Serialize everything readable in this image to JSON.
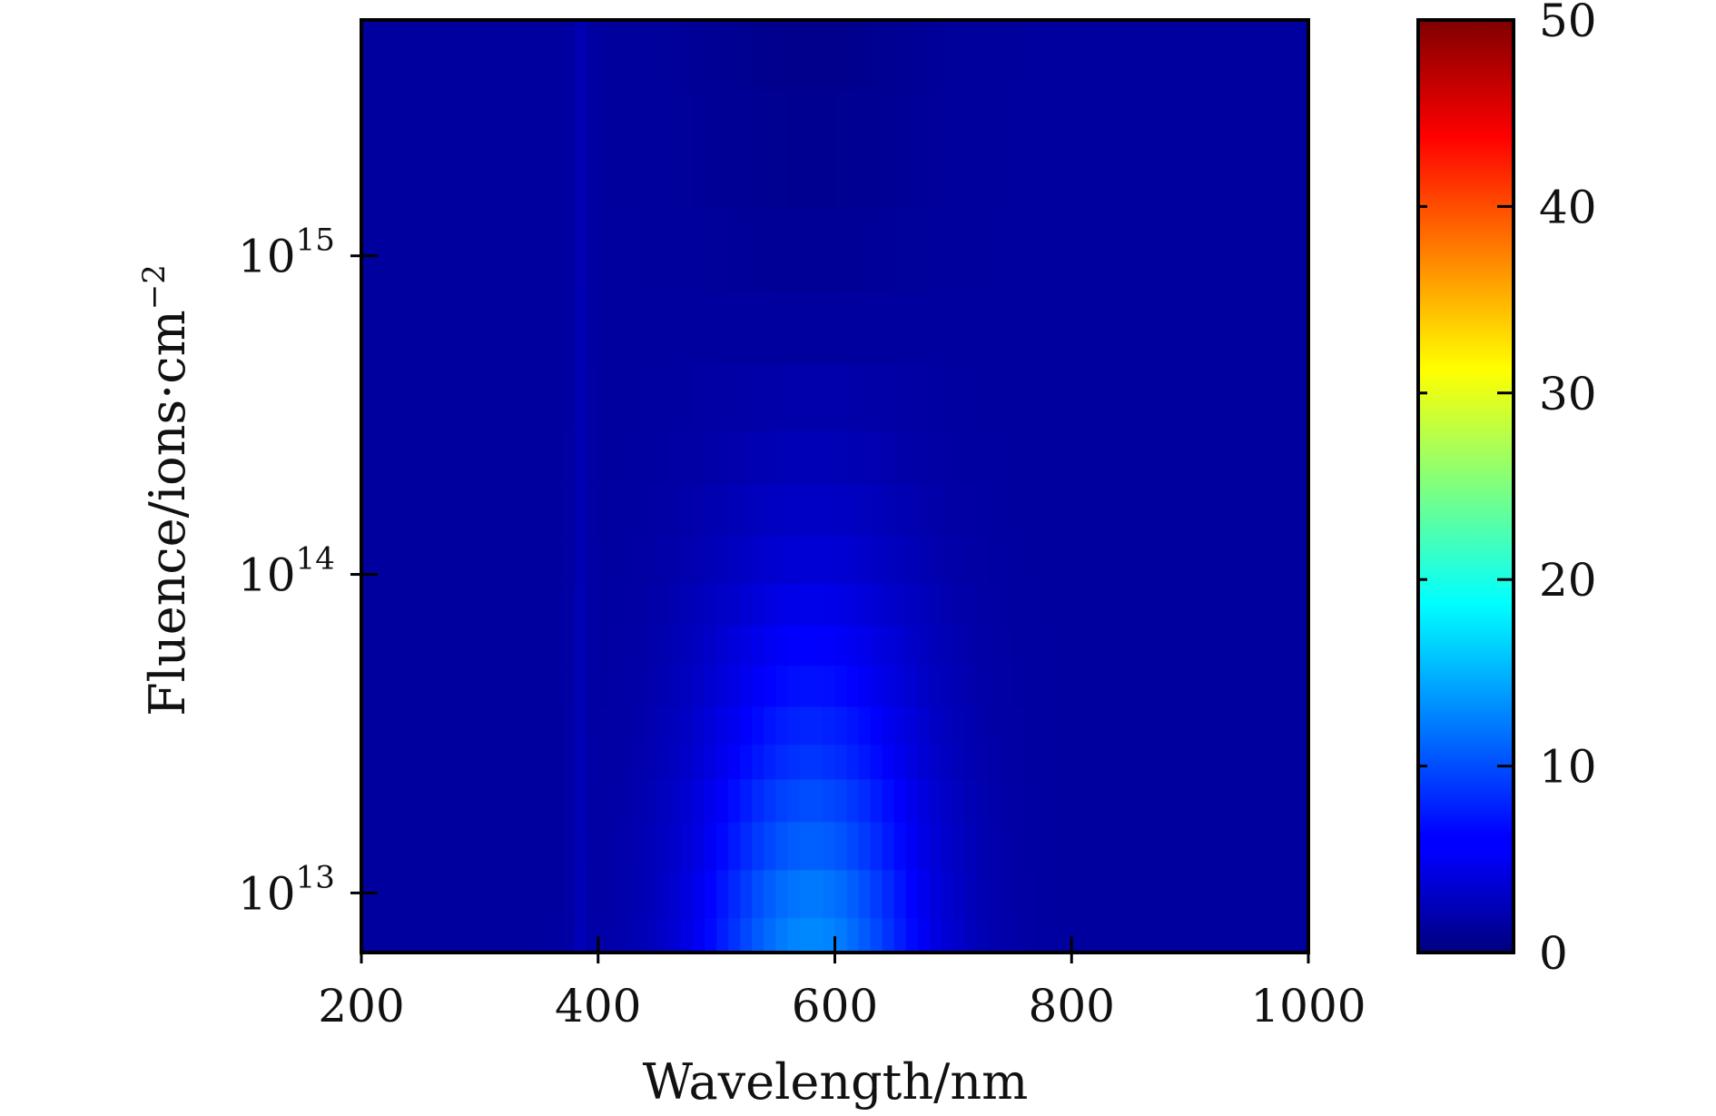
{
  "chart_data": {
    "type": "heatmap",
    "title": "",
    "xlabel": "Wavelength/nm",
    "ylabel_text": "Fluence/ions·cm",
    "ylabel_exponent": "−2",
    "x_range": [
      200,
      1000
    ],
    "x_ticks": [
      200,
      400,
      600,
      800,
      1000
    ],
    "x_tick_labels": [
      "200",
      "400",
      "600",
      "800",
      "1000"
    ],
    "y_scale": "log",
    "y_range": [
      6500000000000.0,
      5500000000000000.0
    ],
    "y_ticks": [
      10000000000000.0,
      100000000000000.0,
      1000000000000000.0
    ],
    "y_tick_labels": [
      {
        "base": "10",
        "exp": "13"
      },
      {
        "base": "10",
        "exp": "14"
      },
      {
        "base": "10",
        "exp": "15"
      }
    ],
    "colorbar": {
      "colormap": "jet",
      "range": [
        0,
        50
      ],
      "ticks": [
        0,
        10,
        20,
        30,
        40,
        50
      ],
      "tick_labels": [
        "0",
        "10",
        "20",
        "30",
        "40",
        "50"
      ]
    },
    "z_description_peak": {
      "wavelength_nm": 580,
      "value_at_lowest_fluence": 13
    },
    "rows": [
      {
        "fluence": 7000000000000.0,
        "peak": 13.0
      },
      {
        "fluence": 10000000000000.0,
        "peak": 12.2
      },
      {
        "fluence": 14000000000000.0,
        "peak": 11.0
      },
      {
        "fluence": 20000000000000.0,
        "peak": 10.0
      },
      {
        "fluence": 26000000000000.0,
        "peak": 8.8
      },
      {
        "fluence": 33000000000000.0,
        "peak": 8.0
      },
      {
        "fluence": 45000000000000.0,
        "peak": 7.0
      },
      {
        "fluence": 60000000000000.0,
        "peak": 6.2
      },
      {
        "fluence": 80000000000000.0,
        "peak": 5.2
      },
      {
        "fluence": 110000000000000.0,
        "peak": 4.2
      },
      {
        "fluence": 160000000000000.0,
        "peak": 3.4
      },
      {
        "fluence": 230000000000000.0,
        "peak": 2.7
      },
      {
        "fluence": 350000000000000.0,
        "peak": 2.1
      },
      {
        "fluence": 600000000000000.0,
        "peak": 1.5
      },
      {
        "fluence": 1000000000000000.0,
        "peak": 1.1
      },
      {
        "fluence": 2000000000000000.0,
        "peak": 0.8
      },
      {
        "fluence": 5500000000000000.0,
        "peak": 0.6
      }
    ],
    "secondary_feature": {
      "wavelength_nm": 385,
      "value": 3.5
    },
    "baseline_value": 1.5
  }
}
